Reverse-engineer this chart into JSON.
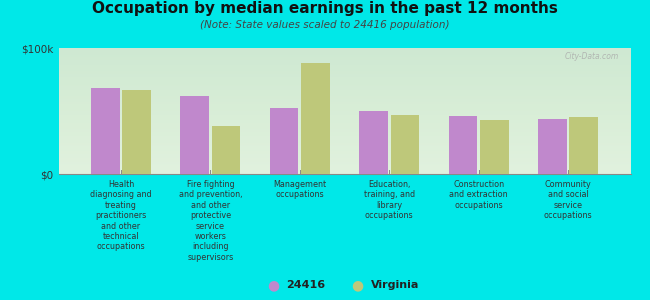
{
  "title": "Occupation by median earnings in the past 12 months",
  "subtitle": "(Note: State values scaled to 24416 population)",
  "background_color": "#00e8e8",
  "chart_bg_top": "#eaf5e8",
  "chart_bg_bottom": "#d8eecc",
  "categories": [
    "Health\ndiagnosing and\ntreating\npractitioners\nand other\ntechnical\noccupations",
    "Fire fighting\nand prevention,\nand other\nprotective\nservice\nworkers\nincluding\nsupervisors",
    "Management\noccupations",
    "Education,\ntraining, and\nlibrary\noccupations",
    "Construction\nand extraction\noccupations",
    "Community\nand social\nservice\noccupations"
  ],
  "values_24416": [
    68000,
    62000,
    52000,
    50000,
    46000,
    44000
  ],
  "values_virginia": [
    67000,
    38000,
    88000,
    47000,
    43000,
    45000
  ],
  "color_24416": "#c088cc",
  "color_virginia": "#bec87a",
  "ylim": [
    0,
    100000
  ],
  "ytick_labels": [
    "$0",
    "$100k"
  ],
  "legend_24416": "24416",
  "legend_virginia": "Virginia",
  "watermark": "City-Data.com"
}
